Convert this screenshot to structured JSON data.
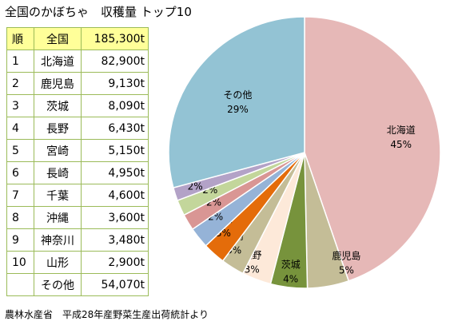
{
  "title": "全国のかぼちゃ　収穫量 トップ10",
  "source": "農林水産省　平成28年産野菜生産出荷統計より",
  "table": {
    "header": {
      "rank": "順",
      "name": "全国",
      "value": "185,300t"
    },
    "rows": [
      {
        "rank": "1",
        "name": "北海道",
        "value": "82,900t"
      },
      {
        "rank": "2",
        "name": "鹿児島",
        "value": "9,130t"
      },
      {
        "rank": "3",
        "name": "茨城",
        "value": "8,090t"
      },
      {
        "rank": "4",
        "name": "長野",
        "value": "6,430t"
      },
      {
        "rank": "5",
        "name": "宮崎",
        "value": "5,150t"
      },
      {
        "rank": "6",
        "name": "長崎",
        "value": "4,950t"
      },
      {
        "rank": "7",
        "name": "千葉",
        "value": "4,600t"
      },
      {
        "rank": "8",
        "name": "沖縄",
        "value": "3,600t"
      },
      {
        "rank": "9",
        "name": "神奈川",
        "value": "3,480t"
      },
      {
        "rank": "10",
        "name": "山形",
        "value": "2,900t"
      }
    ],
    "other": {
      "rank": "",
      "name": "その他",
      "value": "54,070t"
    }
  },
  "chart_data": {
    "type": "pie",
    "title": "",
    "categories": [
      "北海道",
      "鹿児島",
      "茨城",
      "長野",
      "宮崎",
      "長崎",
      "千葉",
      "沖縄",
      "神奈川",
      "山形",
      "その他"
    ],
    "values": [
      82900,
      9130,
      8090,
      6430,
      5150,
      4950,
      4600,
      3600,
      3480,
      2900,
      54070
    ],
    "percent_labels": [
      "45%",
      "5%",
      "4%",
      "3%",
      "3%",
      "3%",
      "2%",
      "2%",
      "2%",
      "2%",
      "29%"
    ],
    "colors": [
      "#e6b8b7",
      "#c4bd97",
      "#77933c",
      "#fde9d9",
      "#c4bd97",
      "#e46c0a",
      "#95b3d7",
      "#d99694",
      "#c3d69b",
      "#b3a2c7",
      "#93c3d4"
    ],
    "start_angle_deg": 0,
    "direction": "clockwise"
  }
}
